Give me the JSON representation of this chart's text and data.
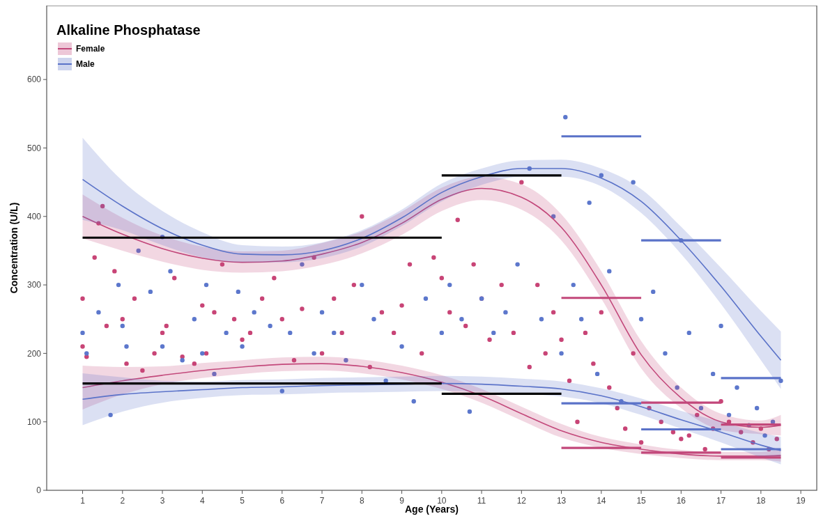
{
  "chart_data": {
    "type": "scatter",
    "title": "Alkaline Phosphatase",
    "xlabel": "Age (Years)",
    "ylabel": "Concentration (U/L)",
    "xlim": [
      0.1,
      19.4
    ],
    "xticks": [
      1,
      2,
      3,
      4,
      5,
      6,
      7,
      8,
      9,
      10,
      11,
      12,
      13,
      14,
      15,
      16,
      17,
      18,
      19
    ],
    "ylim": [
      0,
      708
    ],
    "yticks": [
      0,
      100,
      200,
      300,
      400,
      500,
      600
    ],
    "grid": false,
    "legend": "top left",
    "series": [
      {
        "marker": "circle",
        "color": "#c84476",
        "x": [
          1.0,
          1.0,
          1.1,
          1.3,
          1.4,
          1.5,
          1.6,
          1.8,
          2.0,
          2.1,
          2.3,
          2.5,
          2.8,
          3.0,
          3.1,
          3.3,
          3.5,
          3.8,
          4.0,
          4.1,
          4.3,
          4.5,
          4.8,
          5.0,
          5.2,
          5.5,
          5.8,
          6.0,
          6.3,
          6.5,
          6.8,
          7.0,
          7.3,
          7.5,
          7.8,
          8.0,
          8.2,
          8.5,
          8.8,
          9.0,
          9.2,
          9.5,
          9.8,
          10.0,
          10.2,
          10.4,
          10.6,
          10.8,
          11.0,
          11.2,
          11.5,
          11.8,
          12.0,
          12.2,
          12.4,
          12.6,
          12.8,
          13.0,
          13.2,
          13.4,
          13.6,
          13.8,
          14.0,
          14.2,
          14.4,
          14.6,
          14.8,
          15.0,
          15.2,
          15.5,
          15.8,
          16.0,
          16.2,
          16.4,
          16.6,
          16.8,
          17.0,
          17.2,
          17.5,
          17.8,
          18.0,
          18.2,
          18.4
        ],
        "values": [
          280,
          210,
          195,
          340,
          390,
          415,
          240,
          320,
          250,
          185,
          280,
          175,
          200,
          230,
          240,
          310,
          195,
          185,
          270,
          200,
          260,
          330,
          250,
          220,
          230,
          280,
          310,
          250,
          190,
          265,
          340,
          200,
          280,
          230,
          300,
          400,
          180,
          260,
          230,
          270,
          330,
          200,
          340,
          310,
          260,
          395,
          240,
          330,
          280,
          220,
          300,
          230,
          450,
          180,
          300,
          200,
          260,
          220,
          160,
          100,
          230,
          185,
          260,
          150,
          120,
          90,
          200,
          70,
          120,
          100,
          85,
          75,
          80,
          110,
          60,
          90,
          130,
          100,
          85,
          70,
          90,
          60,
          75
        ]
      },
      {
        "marker": "circle",
        "color": "#5c77cc",
        "x": [
          1.0,
          1.1,
          1.4,
          1.7,
          1.9,
          2.0,
          2.1,
          2.4,
          2.7,
          3.0,
          3.0,
          3.2,
          3.5,
          3.8,
          4.0,
          4.1,
          4.3,
          4.6,
          4.9,
          5.0,
          5.3,
          5.7,
          6.0,
          6.2,
          6.5,
          6.8,
          7.0,
          7.3,
          7.6,
          8.0,
          8.3,
          8.6,
          9.0,
          9.3,
          9.6,
          10.0,
          10.2,
          10.5,
          10.7,
          11.0,
          11.3,
          11.6,
          11.9,
          12.2,
          12.5,
          12.8,
          13.0,
          13.1,
          13.3,
          13.5,
          13.7,
          13.9,
          14.0,
          14.2,
          14.5,
          14.8,
          15.0,
          15.3,
          15.6,
          15.9,
          16.0,
          16.2,
          16.5,
          16.8,
          17.0,
          17.2,
          17.4,
          17.7,
          17.9,
          18.1,
          18.3,
          18.5
        ],
        "values": [
          230,
          200,
          260,
          110,
          300,
          240,
          210,
          350,
          290,
          210,
          370,
          320,
          190,
          250,
          200,
          300,
          170,
          230,
          290,
          210,
          260,
          240,
          145,
          230,
          330,
          200,
          260,
          230,
          190,
          300,
          250,
          160,
          210,
          130,
          280,
          230,
          300,
          250,
          115,
          280,
          230,
          260,
          330,
          470,
          250,
          400,
          200,
          545,
          300,
          250,
          420,
          170,
          460,
          320,
          130,
          450,
          250,
          290,
          200,
          150,
          365,
          230,
          120,
          170,
          240,
          110,
          150,
          95,
          120,
          80,
          100,
          160
        ]
      },
      {
        "type": "line",
        "name": "Female",
        "color": "#c2477a",
        "x": [
          1,
          2,
          3,
          4,
          5,
          6,
          7,
          8,
          9,
          10,
          11,
          12,
          13,
          14,
          15,
          16,
          17,
          18,
          18.5
        ],
        "values": [
          400,
          374,
          353,
          339,
          333,
          335,
          345,
          362,
          390,
          425,
          441,
          428,
          384,
          300,
          198,
          135,
          100,
          92,
          95
        ],
        "lower": [
          368,
          350,
          334,
          322,
          318,
          320,
          329,
          346,
          373,
          408,
          424,
          410,
          365,
          280,
          178,
          120,
          88,
          82,
          80
        ],
        "upper": [
          432,
          398,
          372,
          356,
          349,
          350,
          361,
          378,
          407,
          442,
          458,
          447,
          403,
          320,
          218,
          150,
          112,
          102,
          110
        ]
      },
      {
        "type": "line",
        "color": "#c3497b",
        "x": [
          1,
          2,
          3,
          4,
          5,
          6,
          7,
          8,
          9,
          10,
          11,
          12,
          13,
          14,
          15,
          16,
          17,
          18,
          18.5
        ],
        "values": [
          150,
          160,
          168,
          175,
          180,
          184,
          185,
          181,
          172,
          158,
          138,
          112,
          87,
          70,
          60,
          53,
          50,
          50,
          51
        ],
        "lower": [
          118,
          140,
          155,
          164,
          170,
          174,
          175,
          171,
          162,
          148,
          128,
          102,
          77,
          62,
          53,
          47,
          44,
          44,
          42
        ],
        "upper": [
          182,
          180,
          181,
          186,
          190,
          194,
          195,
          191,
          182,
          168,
          148,
          122,
          97,
          78,
          67,
          59,
          56,
          56,
          60
        ]
      },
      {
        "type": "line",
        "name": "Male",
        "color": "#5a72c8",
        "x": [
          1,
          2,
          3,
          4,
          5,
          6,
          7,
          8,
          9,
          10,
          11,
          12,
          13,
          14,
          15,
          16,
          17,
          18,
          18.5
        ],
        "values": [
          454,
          415,
          382,
          358,
          345,
          344,
          350,
          368,
          398,
          435,
          458,
          470,
          470,
          456,
          422,
          365,
          298,
          225,
          190
        ],
        "lower": [
          395,
          380,
          358,
          340,
          333,
          333,
          339,
          356,
          386,
          422,
          446,
          458,
          458,
          444,
          405,
          345,
          272,
          190,
          148
        ],
        "upper": [
          515,
          452,
          408,
          377,
          358,
          356,
          362,
          380,
          410,
          448,
          470,
          482,
          483,
          470,
          440,
          385,
          325,
          262,
          232
        ]
      },
      {
        "type": "line",
        "color": "#5b73c9",
        "x": [
          1,
          2,
          3,
          4,
          5,
          6,
          7,
          8,
          9,
          10,
          11,
          12,
          13,
          14,
          15,
          16,
          17,
          18,
          18.5
        ],
        "values": [
          133,
          140,
          144,
          147,
          150,
          151,
          153,
          154,
          155,
          156,
          155,
          152,
          148,
          138,
          122,
          103,
          85,
          66,
          58
        ],
        "lower": [
          95,
          115,
          128,
          135,
          139,
          140,
          142,
          143,
          144,
          145,
          144,
          141,
          137,
          127,
          110,
          90,
          70,
          48,
          38
        ],
        "upper": [
          171,
          165,
          160,
          159,
          161,
          162,
          164,
          165,
          166,
          167,
          166,
          163,
          159,
          149,
          134,
          116,
          100,
          84,
          78
        ]
      },
      {
        "type": "line",
        "color": "#000000",
        "x": [
          1,
          10
        ],
        "values": [
          369,
          369
        ]
      },
      {
        "type": "line",
        "color": "#000000",
        "x": [
          10,
          13
        ],
        "values": [
          460,
          460
        ]
      },
      {
        "type": "line",
        "color": "#000000",
        "x": [
          1,
          10
        ],
        "values": [
          156,
          156
        ]
      },
      {
        "type": "line",
        "color": "#000000",
        "x": [
          10,
          13
        ],
        "values": [
          141,
          141
        ]
      },
      {
        "type": "line",
        "color": "#5a72c8",
        "x": [
          13,
          15
        ],
        "values": [
          517,
          517
        ]
      },
      {
        "type": "line",
        "color": "#5a72c8",
        "x": [
          15,
          17
        ],
        "values": [
          365,
          365
        ]
      },
      {
        "type": "line",
        "color": "#5a72c8",
        "x": [
          17,
          18.5
        ],
        "values": [
          164,
          164
        ]
      },
      {
        "type": "line",
        "color": "#5a72c8",
        "x": [
          13,
          15
        ],
        "values": [
          127,
          127
        ]
      },
      {
        "type": "line",
        "color": "#5a72c8",
        "x": [
          15,
          17
        ],
        "values": [
          89,
          89
        ]
      },
      {
        "type": "line",
        "color": "#5a72c8",
        "x": [
          17,
          18.5
        ],
        "values": [
          60,
          60
        ]
      },
      {
        "type": "line",
        "color": "#c2477a",
        "x": [
          13,
          15
        ],
        "values": [
          281,
          281
        ]
      },
      {
        "type": "line",
        "color": "#c2477a",
        "x": [
          15,
          17
        ],
        "values": [
          128,
          128
        ]
      },
      {
        "type": "line",
        "color": "#c2477a",
        "x": [
          17,
          18.5
        ],
        "values": [
          96,
          96
        ]
      },
      {
        "type": "line",
        "color": "#c2477a",
        "x": [
          13,
          15
        ],
        "values": [
          62,
          62
        ]
      },
      {
        "type": "line",
        "color": "#c2477a",
        "x": [
          15,
          17
        ],
        "values": [
          55,
          55
        ]
      },
      {
        "type": "line",
        "color": "#c2477a",
        "x": [
          17,
          18.5
        ],
        "values": [
          48,
          48
        ]
      }
    ]
  }
}
